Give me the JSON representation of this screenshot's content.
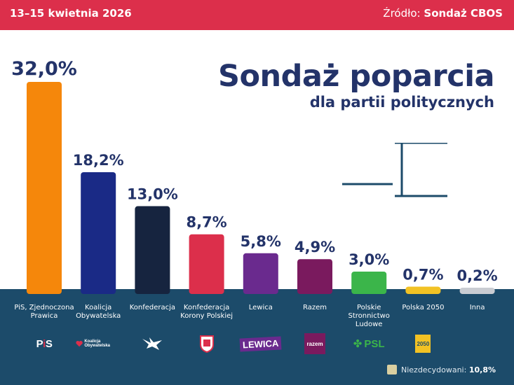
{
  "header": {
    "date": "13–15 kwietnia 2026",
    "source_prefix": "Źródło:",
    "source_name": "Sondaż CBOS"
  },
  "title": "Sondaż poparcia",
  "subtitle": "dla partii politycznych",
  "chart_data": {
    "type": "bar",
    "title": "Sondaż poparcia",
    "subtitle": "dla partii politycznych",
    "categories": [
      [
        "PiS, Zjednoczona",
        "Prawica"
      ],
      [
        "Koalicja",
        "Obywatelska"
      ],
      [
        "Konfederacja"
      ],
      [
        "Konfederacja",
        "Korony Polskiej"
      ],
      [
        "Lewica"
      ],
      [
        "Razem"
      ],
      [
        "Polskie",
        "Stronnictwo",
        "Ludowe"
      ],
      [
        "Polska 2050"
      ],
      [
        "Inna"
      ]
    ],
    "values": [
      32.0,
      18.2,
      13.0,
      8.7,
      5.8,
      4.9,
      3.0,
      0.7,
      0.2
    ],
    "value_labels": [
      "32,0%",
      "18,2%",
      "13,0%",
      "8,7%",
      "5,8%",
      "4,9%",
      "3,0%",
      "0,7%",
      "0,2%"
    ],
    "colors": [
      "#f5870b",
      "#1a2a86",
      "#16243f",
      "#dc2f4b",
      "#6a2a8e",
      "#7a1a5e",
      "#3bb54a",
      "#f2c224",
      "#c9ccd2"
    ],
    "unit": "%",
    "xlabel": "",
    "ylabel": "",
    "ylim": [
      0,
      32
    ]
  },
  "logos": [
    {
      "icon": "pis-logo",
      "text": "PiS",
      "color": "#1b3f8b"
    },
    {
      "icon": "ko-logo",
      "text": "Koalicja Obywatelska",
      "color": "#ffffff"
    },
    {
      "icon": "konfederacja-eagle-icon",
      "text": "",
      "color": "#ffffff"
    },
    {
      "icon": "korona-coat-of-arms-icon",
      "text": "",
      "color": "#dc2f4b"
    },
    {
      "icon": "lewica-logo",
      "text": "LEWICA",
      "color": "#ffffff"
    },
    {
      "icon": "razem-logo",
      "text": "razem",
      "color": "#ffffff"
    },
    {
      "icon": "psl-logo",
      "text": "PSL",
      "color": "#3bb54a"
    },
    {
      "icon": "polska2050-logo",
      "text": "2050",
      "color": "#f2c224"
    }
  ],
  "undecided": {
    "label": "Niezdecydowani:",
    "value": "10,8%",
    "color": "#d9cfa0"
  },
  "colors": {
    "accent": "#dc2f4b",
    "navy": "#233369",
    "bottom_band": "#1c4b6a"
  }
}
